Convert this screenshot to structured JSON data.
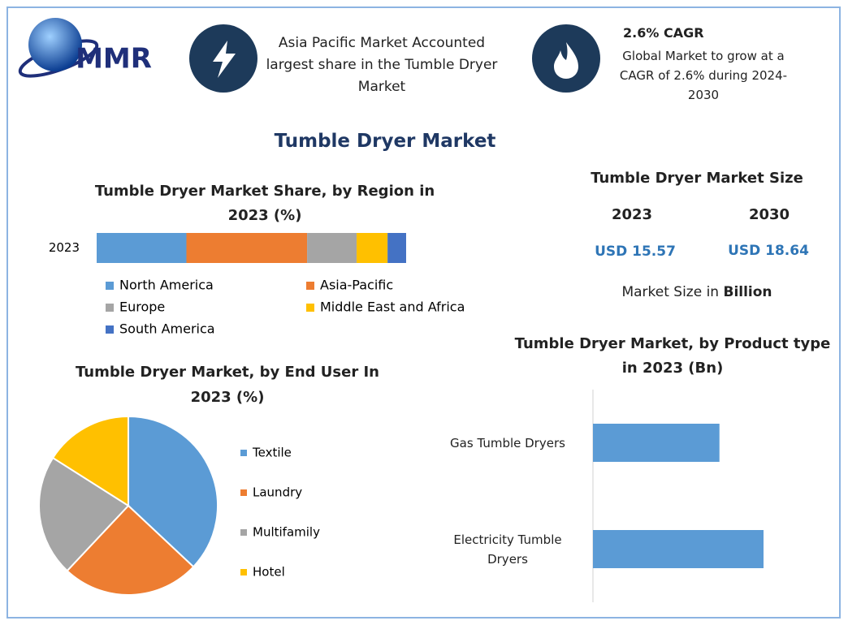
{
  "logo": "MMR",
  "highlights": [
    {
      "text": "Asia Pacific Market Accounted largest share in the Tumble Dryer Market"
    },
    {
      "title": "2.6% CAGR",
      "text": "Global Market to grow at a CAGR of 2.6% during 2024-2030"
    }
  ],
  "title": "Tumble Dryer Market",
  "market_size": {
    "title": "Tumble Dryer Market Size",
    "years": [
      "2023",
      "2030"
    ],
    "values": [
      "USD 15.57",
      "USD 18.64"
    ],
    "note": "Market Size in",
    "unit": "Billion"
  },
  "chart_data": [
    {
      "type": "stacked_bar",
      "title": "Tumble Dryer Market Share, by Region in 2023 (%)",
      "categories": [
        "2023"
      ],
      "series": [
        {
          "name": "North America",
          "color": "#5b9bd5",
          "values": [
            29
          ]
        },
        {
          "name": "Asia-Pacific",
          "color": "#ed7d31",
          "values": [
            39
          ]
        },
        {
          "name": "Europe",
          "color": "#a5a5a5",
          "values": [
            16
          ]
        },
        {
          "name": "Middle East and Africa",
          "color": "#ffc000",
          "values": [
            10
          ]
        },
        {
          "name": "South America",
          "color": "#4472c4",
          "values": [
            6
          ]
        }
      ]
    },
    {
      "type": "pie",
      "title": "Tumble Dryer Market, by End User In 2023 (%)",
      "categories": [
        "Textile",
        "Laundry",
        "Multifamily",
        "Hotel"
      ],
      "values": [
        37,
        25,
        22,
        16
      ],
      "colors": [
        "#5b9bd5",
        "#ed7d31",
        "#a5a5a5",
        "#ffc000"
      ]
    },
    {
      "type": "hbar",
      "title": "Tumble Dryer Market, by Product type in 2023 (Bn)",
      "categories": [
        "Gas Tumble Dryers",
        "Electricity Tumble Dryers"
      ],
      "values": [
        6.6,
        8.9
      ],
      "color": "#5b9bd5"
    }
  ]
}
